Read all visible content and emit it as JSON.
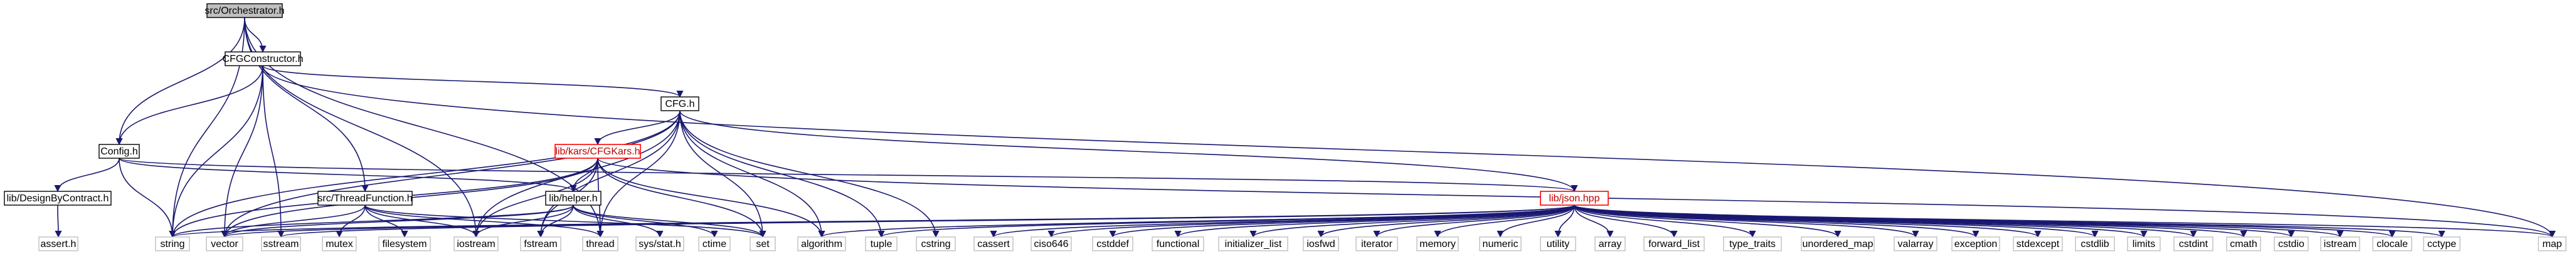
{
  "graph": {
    "nodes": {
      "orchestrator": "src/Orchestrator.h",
      "cfgconstructor": "CFGConstructor.h",
      "cfg": "CFG.h",
      "config": "Config.h",
      "cfgkars": "lib/kars/CFGKars.h",
      "designbycontract": "lib/DesignByContract.h",
      "threadfunction": "src/ThreadFunction.h",
      "helper": "lib/helper.h",
      "json": "lib/json.hpp",
      "assert": "assert.h",
      "string": "string",
      "vector": "vector",
      "sstream": "sstream",
      "mutex": "mutex",
      "filesystem": "filesystem",
      "iostream": "iostream",
      "fstream": "fstream",
      "thread": "thread",
      "sysstat": "sys/stat.h",
      "ctime": "ctime",
      "set": "set",
      "algorithm": "algorithm",
      "tuple": "tuple",
      "cstring": "cstring",
      "cassert": "cassert",
      "ciso646": "ciso646",
      "cstddef": "cstddef",
      "functional": "functional",
      "initializer_list": "initializer_list",
      "iosfwd": "iosfwd",
      "iterator": "iterator",
      "memory": "memory",
      "numeric": "numeric",
      "utility": "utility",
      "array": "array",
      "forward_list": "forward_list",
      "type_traits": "type_traits",
      "unordered_map": "unordered_map",
      "valarray": "valarray",
      "exception": "exception",
      "stdexcept": "stdexcept",
      "cstdlib": "cstdlib",
      "limits": "limits",
      "cstdint": "cstdint",
      "cmath": "cmath",
      "cstdio": "cstdio",
      "istream": "istream",
      "clocale": "clocale",
      "cctype": "cctype",
      "map": "map"
    },
    "colors": {
      "edge": "#191970",
      "root_fill": "#bfbfbf",
      "highlight_border": "#ff0000",
      "external_border": "#bfbfbf"
    }
  }
}
